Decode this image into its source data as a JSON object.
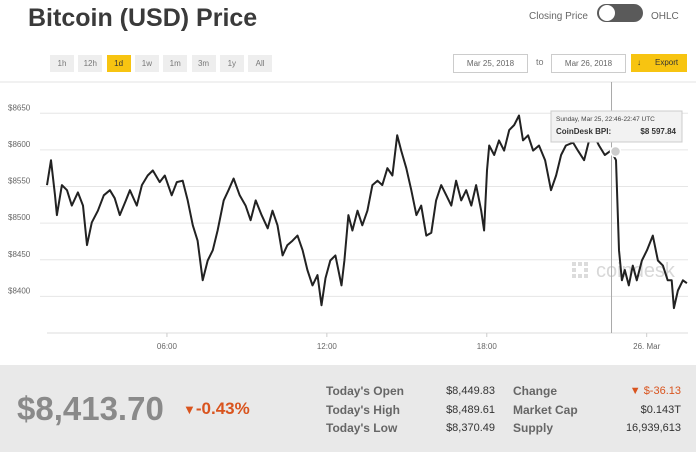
{
  "header": {
    "title": "Bitcoin (USD) Price",
    "toggle_left": "Closing Price",
    "toggle_right": "OHLC"
  },
  "controls": {
    "ranges": [
      "1h",
      "12h",
      "1d",
      "1w",
      "1m",
      "3m",
      "1y",
      "All"
    ],
    "active_range": "1d",
    "date_from": "Mar 25, 2018",
    "date_sep": "to",
    "date_to": "Mar 26, 2018",
    "export": "Export"
  },
  "chart_data": {
    "type": "line",
    "color": "#222222",
    "x": [
      1.5,
      1.65,
      1.8,
      1.87,
      2.06,
      2.25,
      2.43,
      2.66,
      2.85,
      3.0,
      3.18,
      3.41,
      3.63,
      3.86,
      4.04,
      4.23,
      4.46,
      4.61,
      4.87,
      5.06,
      5.28,
      5.47,
      5.73,
      5.92,
      6.18,
      6.37,
      6.59,
      6.78,
      6.97,
      7.15,
      7.34,
      7.53,
      7.72,
      7.9,
      8.13,
      8.31,
      8.5,
      8.73,
      8.95,
      9.14,
      9.33,
      9.55,
      9.78,
      9.96,
      10.15,
      10.34,
      10.52,
      10.71,
      10.9,
      11.09,
      11.27,
      11.46,
      11.65,
      11.8,
      11.95,
      12.13,
      12.32,
      12.55,
      12.66,
      12.81,
      12.96,
      13.15,
      13.33,
      13.52,
      13.71,
      13.9,
      14.08,
      14.27,
      14.46,
      14.64,
      14.79,
      14.98,
      15.17,
      15.36,
      15.54,
      15.73,
      15.92,
      16.1,
      16.29,
      16.48,
      16.67,
      16.85,
      17.04,
      17.23,
      17.42,
      17.6,
      17.79,
      17.9,
      18.01,
      18.09,
      18.28,
      18.46,
      18.65,
      18.84,
      19.03,
      19.21,
      19.36,
      19.55,
      19.74,
      19.96,
      20.19,
      20.41,
      20.6,
      20.79,
      20.97,
      21.24,
      21.42,
      21.65,
      21.84,
      22.02,
      22.21,
      22.43,
      22.66,
      22.85,
      22.96,
      23.07,
      23.18,
      23.33,
      23.48,
      23.63,
      23.82,
      24.01,
      24.23,
      24.42,
      24.61,
      24.79,
      24.94,
      25.02,
      25.17,
      25.36,
      25.51
    ],
    "values": [
      8552,
      8586,
      8538,
      8511,
      8552,
      8545,
      8524,
      8542,
      8524,
      8470,
      8501,
      8517,
      8538,
      8545,
      8534,
      8511,
      8531,
      8545,
      8524,
      8552,
      8565,
      8572,
      8556,
      8565,
      8538,
      8556,
      8558,
      8531,
      8497,
      8476,
      8422,
      8449,
      8463,
      8490,
      8531,
      8545,
      8561,
      8538,
      8524,
      8504,
      8531,
      8511,
      8493,
      8517,
      8497,
      8456,
      8470,
      8476,
      8483,
      8463,
      8436,
      8415,
      8429,
      8388,
      8425,
      8449,
      8456,
      8415,
      8449,
      8511,
      8490,
      8517,
      8497,
      8517,
      8552,
      8558,
      8552,
      8575,
      8565,
      8620,
      8599,
      8575,
      8545,
      8511,
      8524,
      8483,
      8487,
      8531,
      8552,
      8538,
      8524,
      8558,
      8531,
      8545,
      8524,
      8552,
      8517,
      8490,
      8572,
      8606,
      8593,
      8613,
      8599,
      8627,
      8634,
      8647,
      8613,
      8620,
      8599,
      8606,
      8586,
      8545,
      8565,
      8593,
      8606,
      8610,
      8599,
      8586,
      8613,
      8620,
      8606,
      8593,
      8599,
      8586,
      8463,
      8422,
      8436,
      8415,
      8442,
      8422,
      8449,
      8463,
      8483,
      8449,
      8442,
      8422,
      8422,
      8384,
      8408,
      8422,
      8418
    ],
    "xlim": [
      1.5,
      25.55
    ],
    "xticks": [
      {
        "value": 6,
        "label": "06:00"
      },
      {
        "value": 12,
        "label": "12:00"
      },
      {
        "value": 18,
        "label": "18:00"
      },
      {
        "value": 24,
        "label": "26. Mar"
      }
    ],
    "ylim": [
      8350,
      8690
    ],
    "yticks": [
      {
        "value": 8400,
        "label": "$8400"
      },
      {
        "value": 8450,
        "label": "$8450"
      },
      {
        "value": 8500,
        "label": "$8500"
      },
      {
        "value": 8550,
        "label": "$8550"
      },
      {
        "value": 8600,
        "label": "$8600"
      },
      {
        "value": 8650,
        "label": "$8650"
      }
    ],
    "grid": true,
    "hover": {
      "x": 22.83,
      "value": 8597.84,
      "label": "$8 597.84",
      "time": "Sunday, Mar 25, 22:46-22:47 UTC",
      "series_label": "CoinDesk BPI:"
    },
    "watermark": "coindesk"
  },
  "summary": {
    "price": "$8,413.70",
    "change_pct": "-0.43%",
    "stats": [
      {
        "label": "Today's Open",
        "value": "$8,449.83"
      },
      {
        "label": "Today's High",
        "value": "$8,489.61"
      },
      {
        "label": "Today's Low",
        "value": "$8,370.49"
      },
      {
        "label": "Change",
        "value": "$-36.13"
      },
      {
        "label": "Market Cap",
        "value": "$0.143T"
      },
      {
        "label": "Supply",
        "value": "16,939,613"
      }
    ]
  }
}
